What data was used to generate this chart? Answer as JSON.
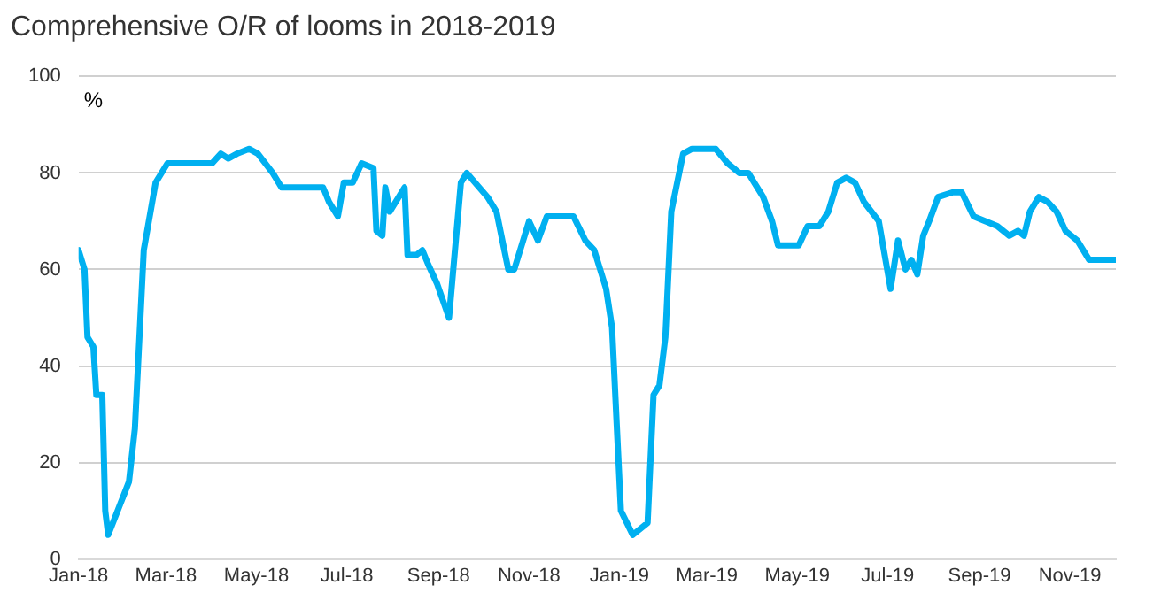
{
  "chart_data": {
    "type": "line",
    "title": "Comprehensive O/R of looms in 2018-2019",
    "ylabel": "%",
    "x": [
      "2018-01-01",
      "2018-01-05",
      "2018-01-07",
      "2018-01-11",
      "2018-01-13",
      "2018-01-17",
      "2018-01-19",
      "2018-01-21",
      "2018-02-04",
      "2018-02-08",
      "2018-02-14",
      "2018-02-22",
      "2018-03-02",
      "2018-04-01",
      "2018-04-07",
      "2018-04-12",
      "2018-04-18",
      "2018-04-26",
      "2018-05-02",
      "2018-05-12",
      "2018-05-18",
      "2018-06-15",
      "2018-06-19",
      "2018-06-25",
      "2018-06-29",
      "2018-07-05",
      "2018-07-11",
      "2018-07-19",
      "2018-07-21",
      "2018-07-25",
      "2018-07-27",
      "2018-07-30",
      "2018-08-09",
      "2018-08-11",
      "2018-08-17",
      "2018-08-21",
      "2018-08-25",
      "2018-08-31",
      "2018-09-08",
      "2018-09-16",
      "2018-09-20",
      "2018-10-04",
      "2018-10-10",
      "2018-10-18",
      "2018-10-22",
      "2018-11-01",
      "2018-11-07",
      "2018-11-13",
      "2018-12-01",
      "2018-12-09",
      "2018-12-15",
      "2018-12-23",
      "2018-12-27",
      "2019-01-02",
      "2019-01-10",
      "2019-01-20",
      "2019-01-24",
      "2019-01-28",
      "2019-02-01",
      "2019-02-05",
      "2019-02-13",
      "2019-02-19",
      "2019-03-07",
      "2019-03-15",
      "2019-03-23",
      "2019-03-29",
      "2019-04-02",
      "2019-04-08",
      "2019-04-14",
      "2019-04-18",
      "2019-05-02",
      "2019-05-08",
      "2019-05-16",
      "2019-05-22",
      "2019-05-28",
      "2019-06-03",
      "2019-06-09",
      "2019-06-15",
      "2019-06-25",
      "2019-07-03",
      "2019-07-08",
      "2019-07-13",
      "2019-07-17",
      "2019-07-21",
      "2019-07-25",
      "2019-07-29",
      "2019-08-04",
      "2019-08-14",
      "2019-08-20",
      "2019-08-28",
      "2019-09-05",
      "2019-09-13",
      "2019-09-21",
      "2019-09-27",
      "2019-10-01",
      "2019-10-05",
      "2019-10-11",
      "2019-10-17",
      "2019-10-23",
      "2019-10-29",
      "2019-11-06",
      "2019-11-14",
      "2019-12-02"
    ],
    "series": [
      {
        "color": "#00b0f0",
        "values": [
          64,
          60,
          46,
          44,
          34,
          34,
          10,
          5,
          16,
          27,
          64,
          78,
          82,
          82,
          84,
          83,
          84,
          85,
          84,
          80,
          77,
          77,
          74,
          71,
          78,
          78,
          82,
          81,
          68,
          67,
          77,
          72,
          77,
          63,
          63,
          64,
          61,
          57,
          50,
          78,
          80,
          75,
          72,
          60,
          60,
          70,
          66,
          71,
          71,
          66,
          64,
          56,
          48,
          10,
          5,
          7.5,
          34,
          36,
          46,
          72,
          84,
          85,
          85,
          82,
          80,
          80,
          78,
          75,
          70,
          65,
          65,
          69,
          69,
          72,
          78,
          79,
          78,
          74,
          70,
          56,
          66,
          60,
          62,
          59,
          67,
          70,
          75,
          76,
          76,
          71,
          70,
          69,
          67,
          68,
          67,
          72,
          75,
          74,
          72,
          68,
          66,
          62,
          62
        ]
      }
    ],
    "xlim": [
      "2018-01-01",
      "2019-12-02"
    ],
    "xticks": [
      {
        "value": "2018-01-01",
        "label": "Jan-18"
      },
      {
        "value": "2018-03-01",
        "label": "Mar-18"
      },
      {
        "value": "2018-05-01",
        "label": "May-18"
      },
      {
        "value": "2018-07-01",
        "label": "Jul-18"
      },
      {
        "value": "2018-09-01",
        "label": "Sep-18"
      },
      {
        "value": "2018-11-01",
        "label": "Nov-18"
      },
      {
        "value": "2019-01-01",
        "label": "Jan-19"
      },
      {
        "value": "2019-03-01",
        "label": "Mar-19"
      },
      {
        "value": "2019-05-01",
        "label": "May-19"
      },
      {
        "value": "2019-07-01",
        "label": "Jul-19"
      },
      {
        "value": "2019-09-01",
        "label": "Sep-19"
      },
      {
        "value": "2019-11-01",
        "label": "Nov-19"
      }
    ],
    "ylim": [
      0,
      100
    ],
    "yticks": [
      0,
      20,
      40,
      60,
      80,
      100
    ],
    "grid": "y",
    "marker": "none",
    "line_style": "solid"
  }
}
